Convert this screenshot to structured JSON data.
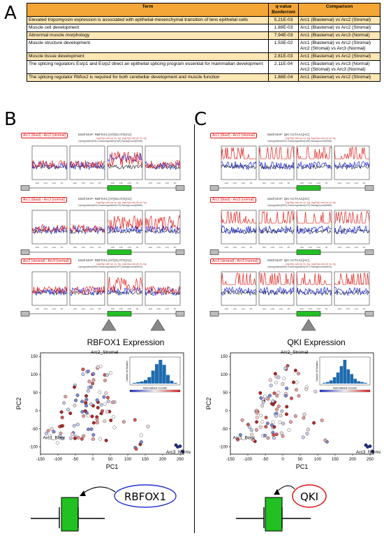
{
  "panels": {
    "A": "A",
    "B": "B",
    "C": "C"
  },
  "table": {
    "headers": {
      "term": "Term",
      "q_line1": "q-value",
      "q_line2": "Bonferroni",
      "comparison": "Comparison"
    },
    "rows": [
      {
        "term": "Elevated tropomyosin expression is associated with epithelial-mesenchymal transition of lens epithelial cells",
        "q": "5.21E-03",
        "cmp": [
          "Arc1 (Blastemal) vs Arc2 (Stromal)"
        ],
        "alt": true
      },
      {
        "term": "Muscle cell development",
        "q": "1.89E-03",
        "cmp": [
          "Arc1 (Blastemal) vs Arc2 (Stromal)"
        ],
        "alt": false
      },
      {
        "term": "Abnormal muscle morphology",
        "q": "7.94E-03",
        "cmp": [
          "Arc1 (Blastemal) vs Arc3 (Normal)"
        ],
        "alt": true
      },
      {
        "term": "Muscle structure development",
        "q": "1.53E-02",
        "cmp": [
          "Arc1 (Blastemal) vs Arc2 (Stromal)",
          "Arc2 (Stromal) vs Arc3 (Normal)"
        ],
        "alt": false
      },
      {
        "term": "Muscle tissue development",
        "q": "2.81E-03",
        "cmp": [
          "Arc1 (Blastemal) vs Arc2 (Stromal)"
        ],
        "alt": true
      },
      {
        "term": "The splicing regulators Esrp1 and Esrp2 direct an epithelial splicing program essential for mammalian development",
        "q": "2.11E-04",
        "cmp": [
          "Arc1 (Blastemal) vs Arc3 (Normal)",
          "Arc2 (Stromal) vs Arc3 (Normal)"
        ],
        "alt": false
      },
      {
        "term": "The splicing regulator Rbfox2 is required for both cerebellar development and muscle function",
        "q": "1.88E-04",
        "cmp": [
          "Arc1 (Blastemal) vs Arc2 (Stromal)"
        ],
        "alt": true
      }
    ]
  },
  "colors": {
    "up": "#e0201c",
    "down": "#1c2ad8",
    "background": "#111111",
    "exon": "#22c022",
    "table_header": "#f4a636",
    "table_alt": "#fde7b4"
  },
  "B": {
    "maps": [
      {
        "label": "Arc1 (blast) - Arc2 (stromal)",
        "motif": "Motif MAP: RBFOX1 [AT]GCATG[AC]",
        "legend1": "-log10(p-val) up vs. bg     -log10(p-val) dn vs. bg",
        "legend2": "Upregulated(181)  Downregulated(165)  Background(9998)"
      },
      {
        "label": "Arc1 (blast) - Arc3 (normal)",
        "motif": "Motif MAP: RBFOX1 [AT]GCATG[AC]",
        "legend1": "-log10(p-val) up vs. bg     -log10(p-val) dn vs. bg",
        "legend2": "Upregulated(304)  Downregulated(479)  Background(9685)"
      },
      {
        "label": "Arc2 (stromal) - Arc3 (normal)",
        "motif": "Motif MAP: RBFOX1 [AT]GCATG[AC]",
        "legend1": "-log10(p-val) up vs. bg     -log10(p-val) dn vs. bg",
        "legend2": "Upregulated(289)  Downregulated(397)  Background(9824)"
      }
    ],
    "pca": {
      "title": "RBFOX1 Expression",
      "xlabel": "PC1",
      "ylabel": "PC2",
      "arc1": "Arc1_Blast",
      "arc2": "Arc2_Stromal",
      "arc3": "Arc3_Normal",
      "hist_y": "Number of Samples",
      "hist_x": "Normalized Counts"
    },
    "protein": "RBFOX1"
  },
  "C": {
    "maps": [
      {
        "label": "Arc1 (blast) - Arc2 (stromal)",
        "motif": "Motif MAP: QKI ACTAAC[AC]",
        "legend1": "-log10(p-val) up vs. bg     -log10(p-val) dn vs. bg",
        "legend2": "Upregulated(181)  Downregulated(165)  Background(9998)"
      },
      {
        "label": "Arc1 (blast) - Arc3 (normal)",
        "motif": "Motif MAP: QKI ACTAAC[AC]",
        "legend1": "-log10(p-val) up vs. bg     -log10(p-val) dn vs. bg",
        "legend2": "Upregulated(304)  Downregulated(479)  Background(9685)"
      },
      {
        "label": "Arc2 (stromal) - Arc3 (normal)",
        "motif": "Motif MAP: QKI ACTAAC[AC]",
        "legend1": "-log10(p-val) up vs. bg     -log10(p-val) dn vs. bg",
        "legend2": "Upregulated(289)  Downregulated(397)  Background(9824)"
      }
    ],
    "pca": {
      "title": "QKI Expression",
      "xlabel": "PC1",
      "ylabel": "PC2",
      "arc1": "Arc1_Blast",
      "arc2": "Arc2_Stromal",
      "arc3": "Arc3_Normal",
      "hist_y": "Number of Samples",
      "hist_x": "Normalized Counts"
    },
    "protein": "QKI"
  },
  "chart_data": [
    {
      "type": "scatter",
      "title": "RBFOX1 Expression",
      "xlabel": "PC1",
      "ylabel": "PC2",
      "xlim": [
        -150,
        260
      ],
      "ylim": [
        -120,
        160
      ],
      "xticks": [
        -150,
        -100,
        -50,
        0,
        50,
        100,
        150,
        200,
        250
      ],
      "yticks": [
        -100,
        -50,
        0,
        50,
        100,
        150
      ],
      "annotations": [
        {
          "text": "Arc1_Blast",
          "x": -143,
          "y": -78
        },
        {
          "text": "Arc2_Stromal",
          "x": -6,
          "y": 158
        },
        {
          "text": "Arc3_Normal",
          "x": 210,
          "y": -118
        }
      ],
      "inset_histogram": {
        "xlabel": "Normalized Counts",
        "ylabel": "Number of Samples",
        "values": [
          1,
          2,
          3,
          5,
          9,
          18,
          27,
          33,
          26,
          12,
          4,
          1
        ]
      }
    },
    {
      "type": "scatter",
      "title": "QKI Expression",
      "xlabel": "PC1",
      "ylabel": "PC2",
      "xlim": [
        -150,
        260
      ],
      "ylim": [
        -120,
        160
      ],
      "xticks": [
        -150,
        -100,
        -50,
        0,
        50,
        100,
        150,
        200,
        250
      ],
      "yticks": [
        -100,
        -50,
        0,
        50,
        100,
        150
      ],
      "annotations": [
        {
          "text": "Arc1_Blast",
          "x": -143,
          "y": -78
        },
        {
          "text": "Arc2_Stromal",
          "x": -6,
          "y": 158
        },
        {
          "text": "Arc3_Normal",
          "x": 210,
          "y": -118
        }
      ],
      "inset_histogram": {
        "xlabel": "Normalized Counts",
        "ylabel": "Number of Samples",
        "values": [
          1,
          2,
          4,
          8,
          14,
          22,
          30,
          18,
          12,
          6,
          3,
          2,
          1
        ]
      }
    }
  ]
}
